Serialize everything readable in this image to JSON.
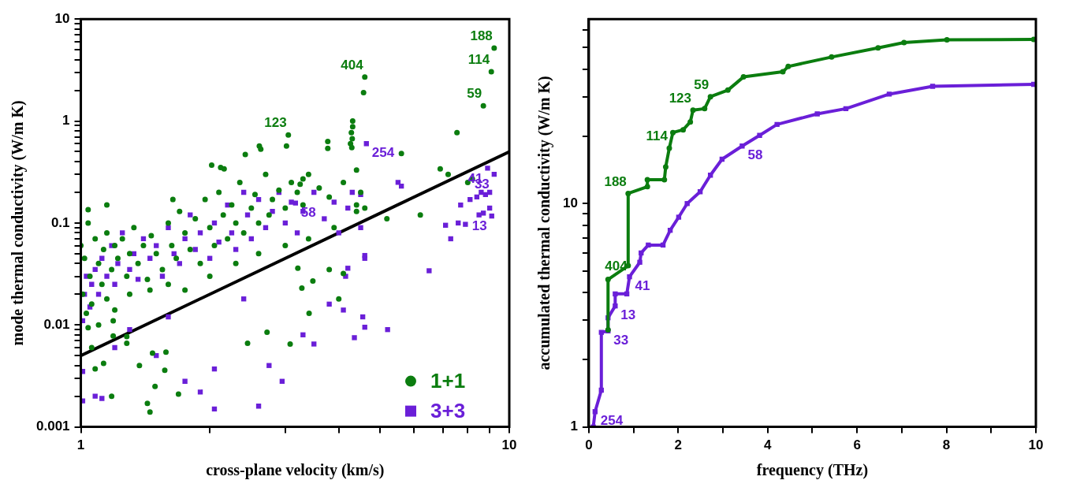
{
  "chart_data": [
    {
      "type": "scatter",
      "xlabel": "cross-plane velocity (km/s)",
      "ylabel": "mode thermal conductivity (W/m K)",
      "log": "xy",
      "xlim": [
        1,
        10
      ],
      "ylim": [
        0.001,
        10
      ],
      "xticks": [
        1,
        {
          "value": 2,
          "label": null
        },
        {
          "value": 3,
          "label": null
        },
        {
          "value": 4,
          "label": null
        },
        {
          "value": 5,
          "label": null
        },
        {
          "value": 6,
          "label": null
        },
        {
          "value": 7,
          "label": null
        },
        {
          "value": 8,
          "label": null
        },
        {
          "value": 9,
          "label": null
        },
        10
      ],
      "yticks": [
        0.001,
        {
          "value": 0.002,
          "label": null
        },
        {
          "value": 0.003,
          "label": null
        },
        {
          "value": 0.004,
          "label": null
        },
        {
          "value": 0.005,
          "label": null
        },
        {
          "value": 0.006,
          "label": null
        },
        {
          "value": 0.007,
          "label": null
        },
        {
          "value": 0.008,
          "label": null
        },
        {
          "value": 0.009,
          "label": null
        },
        0.01,
        {
          "value": 0.02,
          "label": null
        },
        {
          "value": 0.03,
          "label": null
        },
        {
          "value": 0.04,
          "label": null
        },
        {
          "value": 0.05,
          "label": null
        },
        {
          "value": 0.06,
          "label": null
        },
        {
          "value": 0.07,
          "label": null
        },
        {
          "value": 0.08,
          "label": null
        },
        {
          "value": 0.09,
          "label": null
        },
        0.1,
        {
          "value": 0.2,
          "label": null
        },
        {
          "value": 0.3,
          "label": null
        },
        {
          "value": 0.4,
          "label": null
        },
        {
          "value": 0.5,
          "label": null
        },
        {
          "value": 0.6,
          "label": null
        },
        {
          "value": 0.7,
          "label": null
        },
        {
          "value": 0.8,
          "label": null
        },
        {
          "value": 0.9,
          "label": null
        },
        1,
        {
          "value": 2,
          "label": null
        },
        {
          "value": 3,
          "label": null
        },
        {
          "value": 4,
          "label": null
        },
        {
          "value": 5,
          "label": null
        },
        {
          "value": 6,
          "label": null
        },
        {
          "value": 7,
          "label": null
        },
        {
          "value": 8,
          "label": null
        },
        {
          "value": 9,
          "label": null
        },
        10
      ],
      "legend": "bottom right",
      "grid": false,
      "series": [
        {
          "name": "1+1",
          "color": "#0b7d0f",
          "marker": "circle",
          "x": [
            9.22,
            9.08,
            4.6,
            8.7,
            3.05,
            4.57,
            4.31,
            4.31,
            4.28,
            4.3,
            4.26,
            4.29,
            7.55,
            3.77,
            3.77,
            5.6,
            3.02,
            2.61,
            2.63,
            2.42,
            2.02,
            2.12,
            2.16,
            1.64,
            1.15,
            1.04,
            6.9,
            7.2,
            5.18,
            4.4,
            4.4,
            3.25,
            3.3,
            1.0,
            1.02,
            1.04,
            1.05,
            1.08,
            1.1,
            1.12,
            1.13,
            1.15,
            1.18,
            1.2,
            1.22,
            1.25,
            1.28,
            1.3,
            1.33,
            1.36,
            1.4,
            1.43,
            1.46,
            1.5,
            1.55,
            1.6,
            1.63,
            1.67,
            1.7,
            1.75,
            1.8,
            1.85,
            1.9,
            1.95,
            2.0,
            2.05,
            2.1,
            2.15,
            2.2,
            2.25,
            2.3,
            2.35,
            2.4,
            2.5,
            2.55,
            2.6,
            2.7,
            2.75,
            2.8,
            2.9,
            3.0,
            3.1,
            3.2,
            3.3,
            3.4,
            3.6,
            3.8,
            4.1,
            4.4,
            4.5,
            4.6,
            1.01,
            1.03,
            1.06,
            1.1,
            1.15,
            1.2,
            1.3,
            1.45,
            1.6,
            1.75,
            2.0,
            2.3,
            2.6,
            3.0,
            3.4,
            3.9,
            6.2,
            8.0,
            8.2,
            3.21,
            3.28,
            3.48,
            3.8,
            4.1,
            4.0,
            3.08,
            3.41,
            2.72,
            2.45,
            1.49,
            1.69,
            1.43,
            1.45,
            1.47,
            1.28,
            1.28,
            1.37,
            1.58,
            1.57,
            1.18,
            1.08,
            1.13,
            1.06,
            1.04,
            1.19,
            1.19
          ],
          "values": [
            5.2,
            3.05,
            2.7,
            1.41,
            0.73,
            1.9,
            1.0,
            0.88,
            0.77,
            0.67,
            0.6,
            0.55,
            0.77,
            0.63,
            0.54,
            0.48,
            0.57,
            0.57,
            0.53,
            0.47,
            0.37,
            0.35,
            0.34,
            0.17,
            0.15,
            0.135,
            0.34,
            0.3,
            0.11,
            0.15,
            0.13,
            0.24,
            0.27,
            0.06,
            0.045,
            0.1,
            0.03,
            0.07,
            0.04,
            0.025,
            0.055,
            0.08,
            0.035,
            0.06,
            0.045,
            0.07,
            0.03,
            0.05,
            0.09,
            0.04,
            0.06,
            0.028,
            0.075,
            0.05,
            0.035,
            0.1,
            0.06,
            0.045,
            0.13,
            0.08,
            0.055,
            0.11,
            0.04,
            0.17,
            0.09,
            0.06,
            0.2,
            0.12,
            0.07,
            0.15,
            0.1,
            0.25,
            0.08,
            0.14,
            0.19,
            0.1,
            0.3,
            0.12,
            0.17,
            0.21,
            0.14,
            0.25,
            0.2,
            0.15,
            0.3,
            0.22,
            0.18,
            0.25,
            0.33,
            0.2,
            0.14,
            0.02,
            0.013,
            0.016,
            0.01,
            0.018,
            0.014,
            0.02,
            0.022,
            0.025,
            0.022,
            0.03,
            0.04,
            0.05,
            0.06,
            0.07,
            0.09,
            0.12,
            0.25,
            0.27,
            0.036,
            0.023,
            0.027,
            0.035,
            0.032,
            0.018,
            0.0065,
            0.013,
            0.0085,
            0.0066,
            0.0025,
            0.0021,
            0.0017,
            0.0014,
            0.0053,
            0.0077,
            0.0066,
            0.004,
            0.0054,
            0.0036,
            0.002,
            0.0037,
            0.0042,
            0.006,
            0.0094,
            0.0078,
            0.011
          ]
        },
        {
          "name": "3+3",
          "color": "#6a1fd8",
          "marker": "square",
          "x": [
            4.64,
            8.9,
            3.17,
            9.22,
            9.1,
            1.01,
            1.02,
            1.03,
            1.05,
            1.06,
            1.08,
            1.1,
            1.12,
            1.15,
            1.18,
            1.2,
            1.22,
            1.25,
            1.3,
            1.33,
            1.36,
            1.4,
            1.45,
            1.5,
            1.55,
            1.6,
            1.65,
            1.7,
            1.75,
            1.8,
            1.85,
            1.9,
            2.0,
            2.05,
            2.1,
            2.2,
            2.25,
            2.3,
            2.4,
            2.45,
            2.5,
            2.6,
            2.7,
            2.8,
            2.9,
            3.0,
            3.1,
            3.2,
            3.3,
            3.5,
            3.7,
            3.9,
            4.0,
            4.2,
            4.3,
            4.5,
            4.5,
            4.6,
            5.5,
            5.6,
            6.5,
            7.1,
            7.3,
            7.6,
            7.9,
            8.4,
            8.6,
            8.8,
            9.0,
            8.5,
            8.7,
            9.0,
            7.7,
            8.1,
            1.01,
            1.01,
            1.08,
            1.12,
            1.2,
            1.3,
            1.5,
            1.6,
            1.75,
            1.9,
            2.05,
            2.05,
            2.4,
            2.6,
            2.75,
            2.95,
            3.3,
            3.5,
            3.8,
            4.1,
            4.15,
            4.2,
            4.55,
            4.6,
            5.2,
            4.6,
            4.35
          ],
          "values": [
            0.6,
            0.345,
            0.157,
            0.3,
            0.117,
            0.011,
            0.02,
            0.03,
            0.015,
            0.025,
            0.035,
            0.02,
            0.045,
            0.03,
            0.06,
            0.025,
            0.04,
            0.08,
            0.035,
            0.05,
            0.028,
            0.07,
            0.045,
            0.06,
            0.03,
            0.09,
            0.05,
            0.04,
            0.07,
            0.12,
            0.055,
            0.08,
            0.045,
            0.1,
            0.065,
            0.15,
            0.08,
            0.055,
            0.2,
            0.12,
            0.07,
            0.17,
            0.09,
            0.13,
            0.2,
            0.1,
            0.16,
            0.08,
            0.13,
            0.2,
            0.11,
            0.16,
            0.08,
            0.14,
            0.2,
            0.19,
            0.09,
            0.045,
            0.25,
            0.23,
            0.034,
            0.095,
            0.07,
            0.1,
            0.097,
            0.18,
            0.2,
            0.19,
            0.2,
            0.12,
            0.125,
            0.14,
            0.15,
            0.17,
            0.0035,
            0.0018,
            0.002,
            0.0019,
            0.006,
            0.009,
            0.005,
            0.012,
            0.0028,
            0.0022,
            0.0037,
            0.0015,
            0.018,
            0.0016,
            0.004,
            0.0028,
            0.008,
            0.0065,
            0.016,
            0.014,
            0.03,
            0.036,
            0.012,
            0.048,
            0.009,
            0.0095,
            0.0075
          ]
        },
        {
          "type": "line",
          "color": "#000000",
          "marker": "none",
          "x": [
            1,
            10
          ],
          "values": [
            0.005,
            0.5
          ]
        }
      ],
      "annotations": [
        {
          "text": "188",
          "x": 9.22,
          "y": 5.2
        },
        {
          "text": "114",
          "x": 9.08,
          "y": 3.05
        },
        {
          "text": "404",
          "x": 4.6,
          "y": 2.7
        },
        {
          "text": "59",
          "x": 8.7,
          "y": 1.41
        },
        {
          "text": "123",
          "x": 3.05,
          "y": 0.73
        },
        {
          "text": "254",
          "x": 4.64,
          "y": 0.6
        },
        {
          "text": "41",
          "x": 8.9,
          "y": 0.345
        },
        {
          "text": "58",
          "x": 3.17,
          "y": 0.157
        },
        {
          "text": "33",
          "x": 9.22,
          "y": 0.3
        },
        {
          "text": "13",
          "x": 9.1,
          "y": 0.117
        }
      ]
    },
    {
      "type": "line",
      "xlabel": "frequency (THz)",
      "ylabel": "accumulated thermal conductivity (W/m K)",
      "log": "y",
      "xlim": [
        0,
        10
      ],
      "ylim": [
        1,
        67
      ],
      "xticks": [
        0,
        {
          "value": 1,
          "label": null
        },
        2,
        {
          "value": 3,
          "label": null
        },
        4,
        {
          "value": 5,
          "label": null
        },
        6,
        {
          "value": 7,
          "label": null
        },
        8,
        {
          "value": 9,
          "label": null
        },
        10
      ],
      "yticks": [
        1,
        {
          "value": 2,
          "label": null
        },
        {
          "value": 3,
          "label": null
        },
        {
          "value": 4,
          "label": null
        },
        {
          "value": 5,
          "label": null
        },
        {
          "value": 6,
          "label": null
        },
        {
          "value": 7,
          "label": null
        },
        {
          "value": 8,
          "label": null
        },
        {
          "value": 9,
          "label": null
        },
        10,
        {
          "value": 20,
          "label": null
        },
        {
          "value": 30,
          "label": null
        },
        {
          "value": 40,
          "label": null
        },
        {
          "value": 50,
          "label": null
        },
        {
          "value": 60,
          "label": null
        }
      ],
      "grid": false,
      "series": [
        {
          "color": "#0b7d0f",
          "marker": "circle",
          "x": [
            0.43,
            0.43,
            0.88,
            0.88,
            1.31,
            1.31,
            1.69,
            1.72,
            1.8,
            1.88,
            2.11,
            2.27,
            2.33,
            2.59,
            2.72,
            3.11,
            3.46,
            4.34,
            4.46,
            5.43,
            6.47,
            7.05,
            8.01,
            9.95
          ],
          "values": [
            2.72,
            4.57,
            5.27,
            11.1,
            11.9,
            12.8,
            12.8,
            14.6,
            17.7,
            20.8,
            21.4,
            23.2,
            26.2,
            26.6,
            30.1,
            32.2,
            36.9,
            38.9,
            41.1,
            45.3,
            49.8,
            52.6,
            54.1,
            54.3
          ]
        },
        {
          "color": "#6a1fd8",
          "marker": "square",
          "x": [
            0.1,
            0.14,
            0.28,
            0.28,
            0.43,
            0.43,
            0.59,
            0.59,
            0.85,
            0.91,
            1.14,
            1.17,
            1.33,
            1.66,
            1.82,
            2.01,
            2.2,
            2.49,
            2.72,
            2.98,
            3.43,
            3.82,
            4.21,
            5.11,
            5.75,
            6.72,
            7.69,
            9.95
          ],
          "values": [
            1.0,
            1.17,
            1.46,
            2.65,
            2.69,
            3.08,
            3.48,
            3.94,
            3.94,
            4.7,
            5.46,
            6.01,
            6.52,
            6.52,
            7.59,
            8.69,
            10.0,
            11.3,
            13.4,
            15.8,
            18.1,
            20.2,
            22.6,
            25.2,
            26.6,
            30.9,
            33.5,
            34.2
          ]
        }
      ],
      "annotations": [
        {
          "text": "404",
          "x": 0.43,
          "y": 4.57
        },
        {
          "text": "188",
          "x": 0.88,
          "y": 11.1
        },
        {
          "text": "114",
          "x": 1.8,
          "y": 17.7
        },
        {
          "text": "123",
          "x": 2.33,
          "y": 26.2
        },
        {
          "text": "59",
          "x": 2.72,
          "y": 30.1
        },
        {
          "text": "254",
          "x": 0.14,
          "y": 1.17
        },
        {
          "text": "33",
          "x": 0.43,
          "y": 2.69
        },
        {
          "text": "13",
          "x": 0.59,
          "y": 3.48
        },
        {
          "text": "41",
          "x": 0.91,
          "y": 4.7
        },
        {
          "text": "58",
          "x": 3.43,
          "y": 18.1
        }
      ]
    }
  ]
}
